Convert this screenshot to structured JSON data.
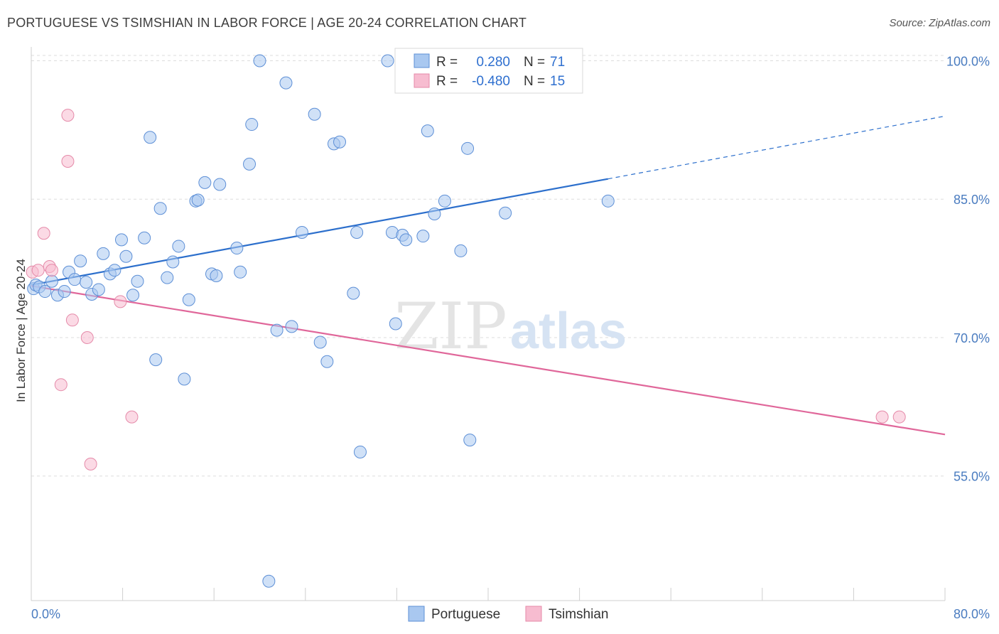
{
  "title": "PORTUGUESE VS TSIMSHIAN IN LABOR FORCE | AGE 20-24 CORRELATION CHART",
  "source": "Source: ZipAtlas.com",
  "watermark": {
    "zip": "ZIP",
    "atlas": "atlas"
  },
  "colors": {
    "portuguese_fill": "#a9c8f0",
    "portuguese_stroke": "#5d8fd6",
    "portuguese_line": "#2c6fcc",
    "tsimshian_fill": "#f7bcd0",
    "tsimshian_stroke": "#e58aa9",
    "tsimshian_line": "#e0679a",
    "grid": "#dddddd",
    "tick_text": "#4a7cc0"
  },
  "chart_data": {
    "type": "scatter",
    "xlabel": "",
    "ylabel": "In Labor Force | Age 20-24",
    "xlim": [
      0,
      80
    ],
    "ylim": [
      41.5,
      101.5
    ],
    "x_tick_labels": [
      {
        "value": 0,
        "label": "0.0%"
      },
      {
        "value": 80,
        "label": "80.0%"
      }
    ],
    "y_tick_labels": [
      {
        "value": 100,
        "label": "100.0%"
      },
      {
        "value": 85,
        "label": "85.0%"
      },
      {
        "value": 70,
        "label": "70.0%"
      },
      {
        "value": 55,
        "label": "55.0%"
      }
    ],
    "grid": true,
    "legend": {
      "placement": "top-center",
      "rows": [
        {
          "r_label": "R =",
          "r_value": "0.280",
          "n_label": "N =",
          "n_value": "71"
        },
        {
          "r_label": "R =",
          "r_value": "-0.480",
          "n_label": "N =",
          "n_value": "15"
        }
      ]
    },
    "series": [
      {
        "name": "Portuguese",
        "points": [
          [
            0.2,
            75.3
          ],
          [
            0.4,
            75.7
          ],
          [
            0.7,
            75.5
          ],
          [
            1.2,
            75.0
          ],
          [
            1.8,
            76.1
          ],
          [
            2.3,
            74.6
          ],
          [
            2.9,
            75.0
          ],
          [
            3.3,
            77.1
          ],
          [
            3.8,
            76.3
          ],
          [
            4.3,
            78.3
          ],
          [
            4.8,
            76.0
          ],
          [
            5.3,
            74.7
          ],
          [
            5.9,
            75.2
          ],
          [
            6.3,
            79.1
          ],
          [
            6.9,
            76.9
          ],
          [
            7.3,
            77.3
          ],
          [
            7.9,
            80.6
          ],
          [
            8.3,
            78.8
          ],
          [
            8.9,
            74.6
          ],
          [
            9.3,
            76.1
          ],
          [
            9.9,
            80.8
          ],
          [
            10.4,
            91.7
          ],
          [
            10.9,
            67.6
          ],
          [
            11.3,
            84.0
          ],
          [
            11.9,
            76.5
          ],
          [
            12.4,
            78.2
          ],
          [
            12.9,
            79.9
          ],
          [
            13.4,
            65.5
          ],
          [
            13.8,
            74.1
          ],
          [
            14.4,
            84.8
          ],
          [
            14.6,
            84.9
          ],
          [
            15.2,
            86.8
          ],
          [
            15.8,
            76.9
          ],
          [
            16.2,
            76.7
          ],
          [
            16.5,
            86.6
          ],
          [
            18.0,
            79.7
          ],
          [
            18.3,
            77.1
          ],
          [
            19.1,
            88.8
          ],
          [
            19.3,
            93.1
          ],
          [
            20.0,
            100.0
          ],
          [
            20.8,
            43.6
          ],
          [
            21.5,
            70.8
          ],
          [
            22.3,
            97.6
          ],
          [
            22.8,
            71.2
          ],
          [
            23.7,
            81.4
          ],
          [
            24.8,
            94.2
          ],
          [
            25.3,
            69.5
          ],
          [
            25.9,
            67.4
          ],
          [
            26.5,
            91.0
          ],
          [
            27.0,
            91.2
          ],
          [
            28.2,
            74.8
          ],
          [
            28.5,
            81.4
          ],
          [
            28.8,
            57.6
          ],
          [
            31.2,
            100.0
          ],
          [
            31.6,
            81.4
          ],
          [
            31.9,
            71.5
          ],
          [
            32.5,
            81.1
          ],
          [
            32.8,
            80.6
          ],
          [
            34.0,
            100.0
          ],
          [
            34.3,
            81.0
          ],
          [
            34.7,
            92.4
          ],
          [
            35.3,
            83.4
          ],
          [
            36.2,
            84.8
          ],
          [
            37.6,
            79.4
          ],
          [
            38.0,
            100.0
          ],
          [
            38.2,
            90.5
          ],
          [
            38.4,
            58.9
          ],
          [
            39.3,
            100.0
          ],
          [
            39.8,
            100.0
          ],
          [
            41.5,
            83.5
          ],
          [
            50.5,
            84.8
          ]
        ],
        "trend": {
          "x0": 0,
          "y0": 75.7,
          "x1": 50.5,
          "y1": 87.2,
          "dashed_to_x": 80,
          "dashed_to_y": 94.0
        }
      },
      {
        "name": "Tsimshian",
        "points": [
          [
            0.1,
            77.1
          ],
          [
            0.6,
            77.3
          ],
          [
            1.1,
            81.3
          ],
          [
            1.6,
            77.7
          ],
          [
            1.8,
            77.3
          ],
          [
            2.6,
            64.9
          ],
          [
            3.2,
            94.1
          ],
          [
            3.2,
            89.1
          ],
          [
            3.6,
            71.9
          ],
          [
            4.9,
            70.0
          ],
          [
            5.2,
            56.3
          ],
          [
            7.8,
            73.9
          ],
          [
            8.8,
            61.4
          ],
          [
            74.5,
            61.4
          ],
          [
            76.0,
            61.4
          ]
        ],
        "trend": {
          "x0": 0,
          "y0": 75.6,
          "x1": 80,
          "y1": 59.5
        }
      }
    ]
  }
}
